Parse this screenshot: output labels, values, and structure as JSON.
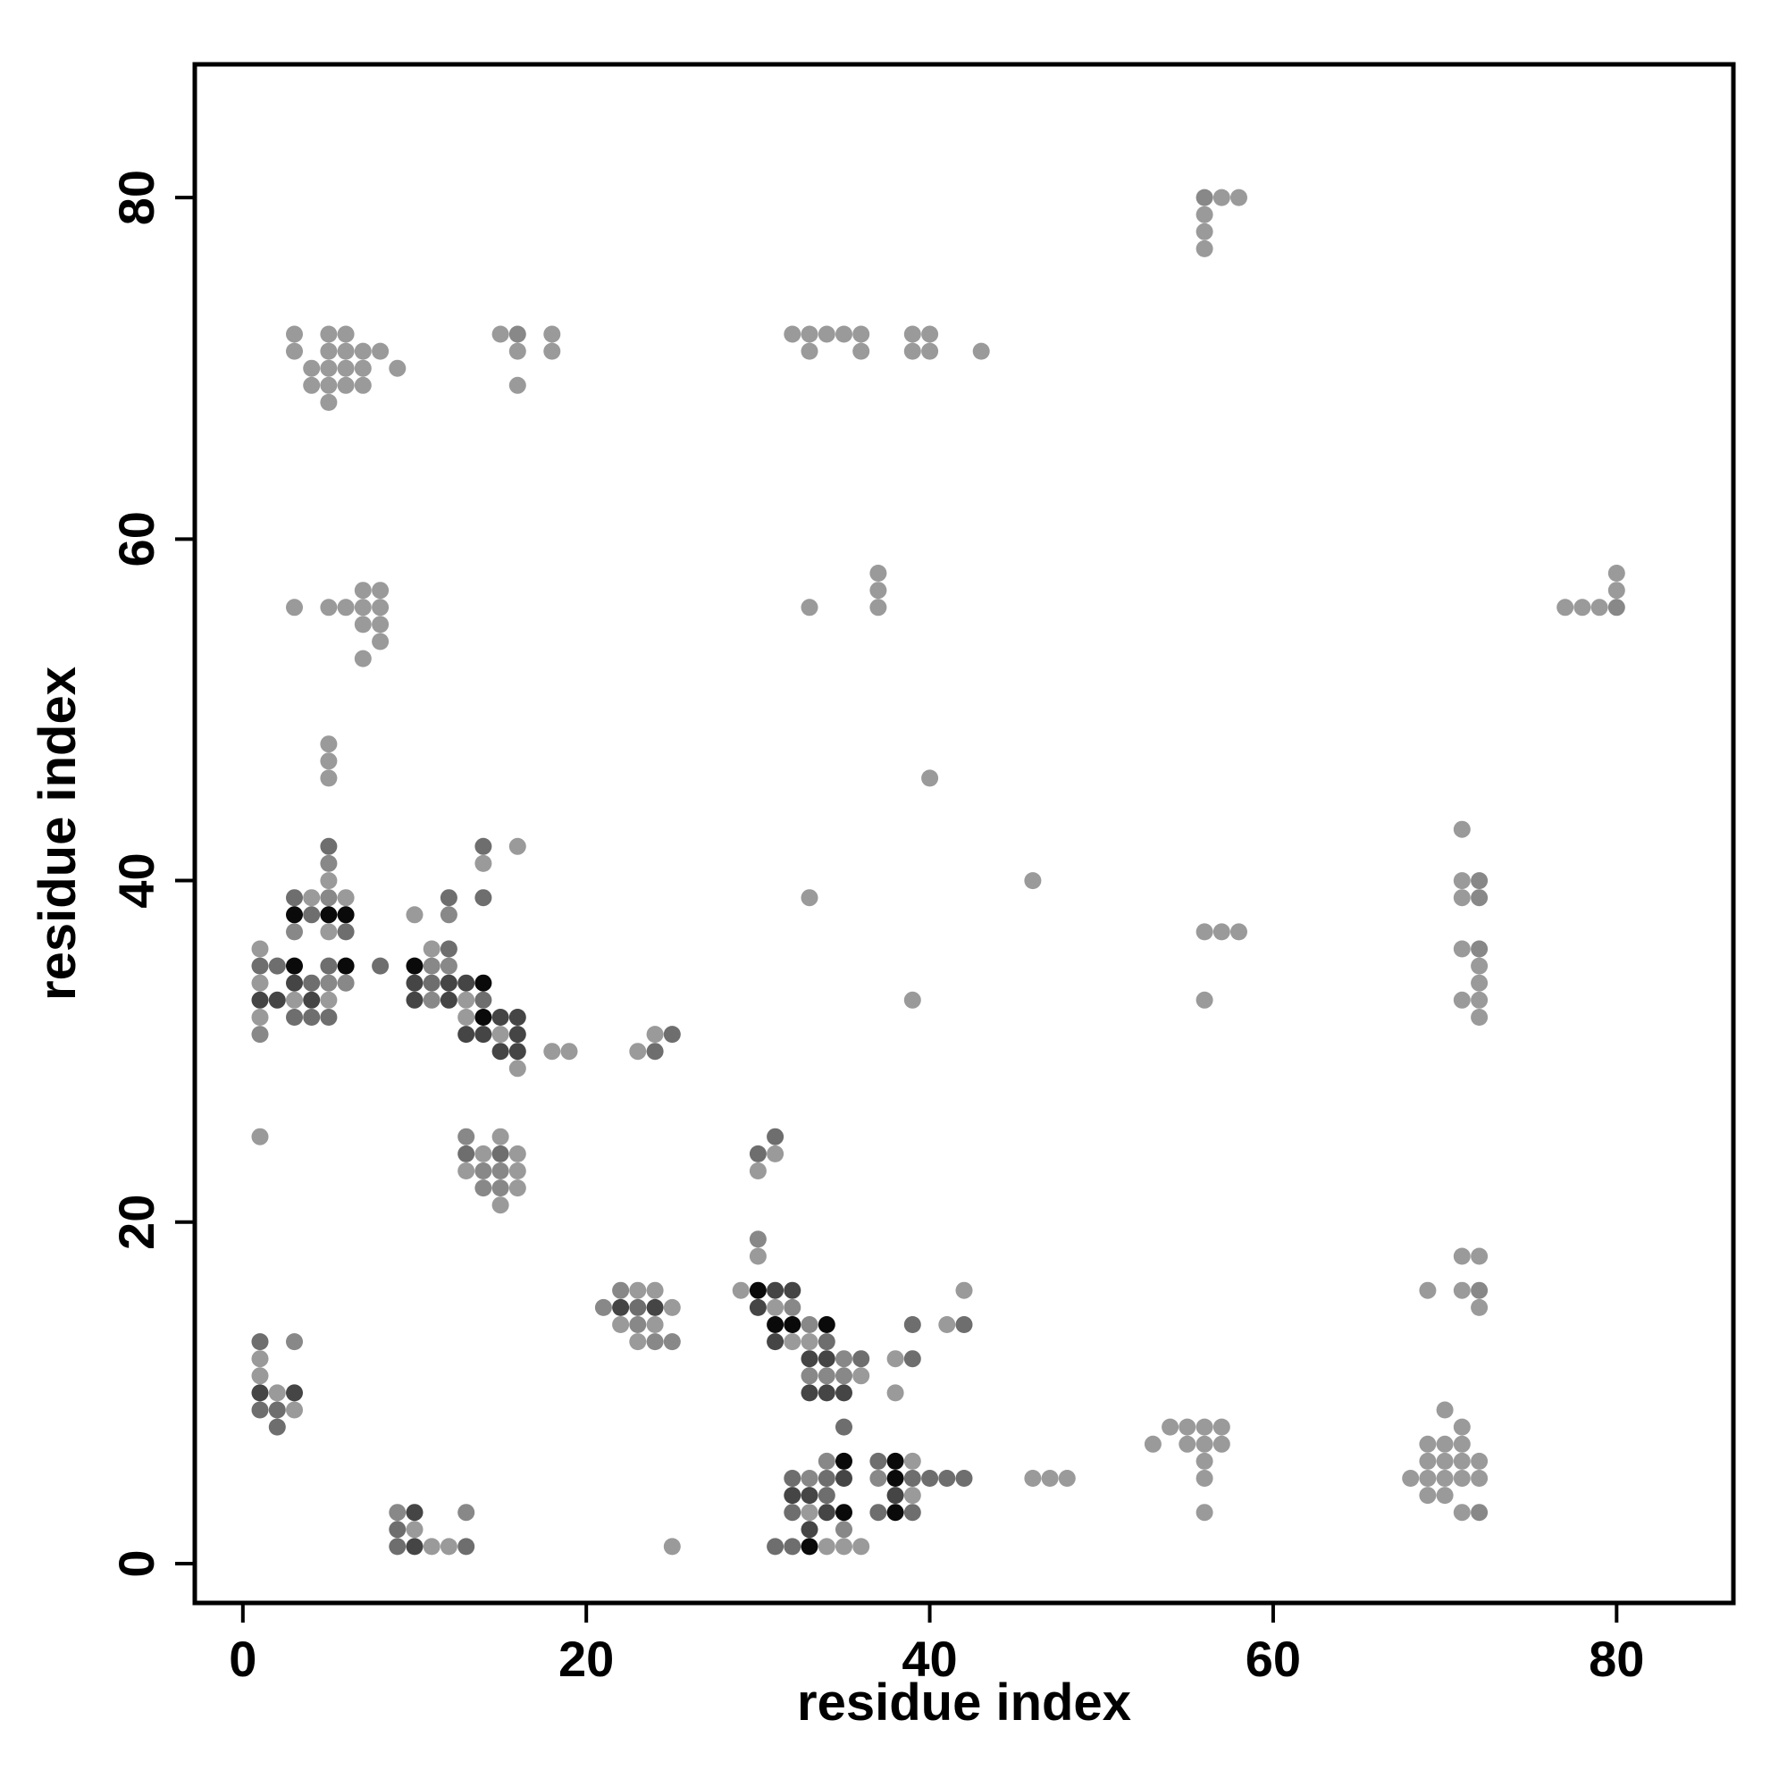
{
  "chart_data": {
    "type": "scatter",
    "title": "",
    "xlabel": "residue index",
    "ylabel": "residue index",
    "xlim": [
      -2.8,
      86.8
    ],
    "ylim": [
      -2.3,
      87.8
    ],
    "xticks": [
      0,
      20,
      40,
      60,
      80
    ],
    "yticks": [
      0,
      20,
      40,
      60,
      80
    ],
    "grid": false,
    "legend": "none",
    "intensity_colors": [
      "#9a9a9a",
      "#888888",
      "#6e6e6e",
      "#454545",
      "#0a0a0a"
    ],
    "point_intensity_note": "each point: [x, y, level] with level 1 (light) to 5 (black)",
    "points": [
      [
        1,
        25,
        1
      ],
      [
        1,
        13,
        3
      ],
      [
        1,
        12,
        1
      ],
      [
        1,
        11,
        1
      ],
      [
        1,
        10,
        4
      ],
      [
        1,
        9,
        3
      ],
      [
        2,
        10,
        1
      ],
      [
        2,
        9,
        3
      ],
      [
        2,
        8,
        3
      ],
      [
        3,
        13,
        2
      ],
      [
        3,
        10,
        4
      ],
      [
        3,
        9,
        1
      ],
      [
        9,
        3,
        2
      ],
      [
        9,
        2,
        3
      ],
      [
        9,
        1,
        3
      ],
      [
        10,
        3,
        4
      ],
      [
        10,
        2,
        1
      ],
      [
        10,
        1,
        4
      ],
      [
        11,
        1,
        1
      ],
      [
        12,
        1,
        1
      ],
      [
        13,
        3,
        2
      ],
      [
        13,
        1,
        3
      ],
      [
        1,
        36,
        1
      ],
      [
        1,
        35,
        3
      ],
      [
        1,
        34,
        1
      ],
      [
        1,
        33,
        4
      ],
      [
        1,
        32,
        1
      ],
      [
        1,
        31,
        2
      ],
      [
        2,
        35,
        3
      ],
      [
        2,
        33,
        4
      ],
      [
        3,
        39,
        3
      ],
      [
        3,
        38,
        5
      ],
      [
        3,
        37,
        2
      ],
      [
        3,
        35,
        5
      ],
      [
        3,
        34,
        4
      ],
      [
        3,
        33,
        1
      ],
      [
        3,
        32,
        3
      ],
      [
        4,
        39,
        1
      ],
      [
        4,
        38,
        3
      ],
      [
        4,
        34,
        3
      ],
      [
        4,
        33,
        4
      ],
      [
        4,
        32,
        3
      ],
      [
        5,
        42,
        3
      ],
      [
        5,
        41,
        2
      ],
      [
        5,
        40,
        1
      ],
      [
        5,
        39,
        2
      ],
      [
        5,
        38,
        5
      ],
      [
        5,
        37,
        1
      ],
      [
        5,
        35,
        3
      ],
      [
        5,
        34,
        2
      ],
      [
        5,
        33,
        1
      ],
      [
        5,
        32,
        3
      ],
      [
        6,
        39,
        1
      ],
      [
        6,
        38,
        5
      ],
      [
        6,
        37,
        3
      ],
      [
        6,
        35,
        5
      ],
      [
        6,
        34,
        2
      ],
      [
        8,
        35,
        3
      ],
      [
        10,
        38,
        1
      ],
      [
        10,
        35,
        5
      ],
      [
        10,
        34,
        4
      ],
      [
        10,
        33,
        4
      ],
      [
        11,
        36,
        1
      ],
      [
        11,
        35,
        2
      ],
      [
        11,
        34,
        3
      ],
      [
        11,
        33,
        2
      ],
      [
        12,
        39,
        3
      ],
      [
        12,
        38,
        2
      ],
      [
        12,
        36,
        3
      ],
      [
        12,
        35,
        2
      ],
      [
        12,
        34,
        4
      ],
      [
        12,
        33,
        4
      ],
      [
        13,
        34,
        4
      ],
      [
        13,
        33,
        1
      ],
      [
        13,
        32,
        1
      ],
      [
        13,
        31,
        4
      ],
      [
        14,
        42,
        3
      ],
      [
        14,
        41,
        1
      ],
      [
        14,
        39,
        3
      ],
      [
        14,
        34,
        5
      ],
      [
        14,
        33,
        3
      ],
      [
        14,
        32,
        5
      ],
      [
        14,
        31,
        4
      ],
      [
        15,
        32,
        4
      ],
      [
        15,
        31,
        1
      ],
      [
        15,
        30,
        4
      ],
      [
        16,
        42,
        1
      ],
      [
        16,
        32,
        4
      ],
      [
        16,
        31,
        4
      ],
      [
        16,
        30,
        4
      ],
      [
        16,
        29,
        1
      ],
      [
        18,
        30,
        1
      ],
      [
        19,
        30,
        1
      ],
      [
        23,
        30,
        1
      ],
      [
        24,
        31,
        1
      ],
      [
        24,
        30,
        3
      ],
      [
        25,
        31,
        3
      ],
      [
        13,
        25,
        2
      ],
      [
        13,
        24,
        3
      ],
      [
        13,
        23,
        1
      ],
      [
        14,
        24,
        1
      ],
      [
        14,
        23,
        2
      ],
      [
        14,
        22,
        2
      ],
      [
        15,
        25,
        1
      ],
      [
        15,
        24,
        3
      ],
      [
        15,
        23,
        2
      ],
      [
        15,
        22,
        2
      ],
      [
        15,
        21,
        1
      ],
      [
        16,
        24,
        1
      ],
      [
        16,
        23,
        1
      ],
      [
        16,
        22,
        1
      ],
      [
        30,
        24,
        3
      ],
      [
        30,
        23,
        1
      ],
      [
        31,
        25,
        3
      ],
      [
        31,
        24,
        1
      ],
      [
        30,
        19,
        2
      ],
      [
        30,
        18,
        1
      ],
      [
        21,
        15,
        2
      ],
      [
        22,
        16,
        2
      ],
      [
        22,
        15,
        4
      ],
      [
        22,
        14,
        1
      ],
      [
        23,
        16,
        1
      ],
      [
        23,
        15,
        3
      ],
      [
        23,
        14,
        2
      ],
      [
        23,
        13,
        1
      ],
      [
        24,
        16,
        1
      ],
      [
        24,
        15,
        4
      ],
      [
        24,
        14,
        1
      ],
      [
        24,
        13,
        2
      ],
      [
        25,
        15,
        1
      ],
      [
        25,
        13,
        2
      ],
      [
        29,
        16,
        1
      ],
      [
        30,
        16,
        5
      ],
      [
        30,
        15,
        4
      ],
      [
        31,
        16,
        4
      ],
      [
        31,
        15,
        1
      ],
      [
        31,
        14,
        5
      ],
      [
        31,
        13,
        4
      ],
      [
        32,
        16,
        4
      ],
      [
        32,
        15,
        2
      ],
      [
        32,
        14,
        5
      ],
      [
        32,
        13,
        1
      ],
      [
        33,
        14,
        2
      ],
      [
        33,
        13,
        1
      ],
      [
        33,
        12,
        4
      ],
      [
        33,
        11,
        2
      ],
      [
        33,
        10,
        4
      ],
      [
        34,
        14,
        5
      ],
      [
        34,
        13,
        3
      ],
      [
        34,
        12,
        4
      ],
      [
        34,
        11,
        2
      ],
      [
        34,
        10,
        4
      ],
      [
        35,
        12,
        2
      ],
      [
        35,
        11,
        2
      ],
      [
        35,
        10,
        4
      ],
      [
        35,
        8,
        3
      ],
      [
        36,
        12,
        3
      ],
      [
        36,
        11,
        1
      ],
      [
        38,
        12,
        1
      ],
      [
        38,
        10,
        1
      ],
      [
        39,
        14,
        3
      ],
      [
        39,
        12,
        3
      ],
      [
        41,
        14,
        1
      ],
      [
        42,
        16,
        1
      ],
      [
        42,
        14,
        3
      ],
      [
        31,
        1,
        3
      ],
      [
        32,
        5,
        3
      ],
      [
        32,
        4,
        4
      ],
      [
        32,
        3,
        3
      ],
      [
        32,
        1,
        3
      ],
      [
        33,
        5,
        2
      ],
      [
        33,
        4,
        4
      ],
      [
        33,
        3,
        1
      ],
      [
        33,
        2,
        4
      ],
      [
        33,
        1,
        5
      ],
      [
        34,
        6,
        2
      ],
      [
        34,
        5,
        3
      ],
      [
        34,
        4,
        3
      ],
      [
        34,
        3,
        4
      ],
      [
        34,
        1,
        1
      ],
      [
        35,
        6,
        5
      ],
      [
        35,
        5,
        4
      ],
      [
        35,
        3,
        5
      ],
      [
        35,
        2,
        2
      ],
      [
        35,
        1,
        1
      ],
      [
        36,
        1,
        1
      ],
      [
        25,
        1,
        1
      ],
      [
        37,
        6,
        3
      ],
      [
        37,
        5,
        2
      ],
      [
        37,
        3,
        3
      ],
      [
        38,
        6,
        5
      ],
      [
        38,
        5,
        5
      ],
      [
        38,
        4,
        4
      ],
      [
        38,
        3,
        5
      ],
      [
        39,
        6,
        1
      ],
      [
        39,
        5,
        3
      ],
      [
        39,
        4,
        1
      ],
      [
        39,
        3,
        3
      ],
      [
        40,
        5,
        3
      ],
      [
        41,
        5,
        3
      ],
      [
        42,
        5,
        3
      ],
      [
        46,
        5,
        1
      ],
      [
        47,
        5,
        1
      ],
      [
        48,
        5,
        1
      ],
      [
        53,
        7,
        1
      ],
      [
        54,
        8,
        1
      ],
      [
        55,
        8,
        1
      ],
      [
        55,
        7,
        1
      ],
      [
        56,
        8,
        1
      ],
      [
        56,
        7,
        1
      ],
      [
        56,
        6,
        1
      ],
      [
        56,
        5,
        1
      ],
      [
        56,
        3,
        1
      ],
      [
        57,
        8,
        1
      ],
      [
        57,
        7,
        1
      ],
      [
        68,
        5,
        1
      ],
      [
        69,
        7,
        1
      ],
      [
        69,
        6,
        1
      ],
      [
        69,
        5,
        1
      ],
      [
        69,
        4,
        1
      ],
      [
        70,
        9,
        1
      ],
      [
        70,
        7,
        1
      ],
      [
        70,
        6,
        1
      ],
      [
        70,
        5,
        1
      ],
      [
        70,
        4,
        1
      ],
      [
        71,
        8,
        1
      ],
      [
        71,
        7,
        1
      ],
      [
        71,
        6,
        1
      ],
      [
        71,
        5,
        1
      ],
      [
        71,
        3,
        1
      ],
      [
        72,
        6,
        1
      ],
      [
        72,
        5,
        1
      ],
      [
        72,
        3,
        2
      ],
      [
        69,
        16,
        1
      ],
      [
        71,
        18,
        1
      ],
      [
        71,
        16,
        1
      ],
      [
        72,
        18,
        1
      ],
      [
        72,
        16,
        2
      ],
      [
        72,
        15,
        1
      ],
      [
        71,
        43,
        1
      ],
      [
        71,
        40,
        1
      ],
      [
        71,
        39,
        1
      ],
      [
        71,
        36,
        1
      ],
      [
        71,
        33,
        1
      ],
      [
        72,
        40,
        2
      ],
      [
        72,
        39,
        2
      ],
      [
        72,
        36,
        2
      ],
      [
        72,
        35,
        1
      ],
      [
        72,
        34,
        1
      ],
      [
        72,
        33,
        1
      ],
      [
        72,
        32,
        1
      ],
      [
        56,
        37,
        1
      ],
      [
        57,
        37,
        1
      ],
      [
        58,
        37,
        1
      ],
      [
        56,
        33,
        1
      ],
      [
        46,
        40,
        1
      ],
      [
        39,
        33,
        1
      ],
      [
        33,
        39,
        1
      ],
      [
        40,
        46,
        1
      ],
      [
        5,
        48,
        1
      ],
      [
        5,
        47,
        1
      ],
      [
        5,
        46,
        1
      ],
      [
        3,
        56,
        1
      ],
      [
        5,
        56,
        1
      ],
      [
        6,
        56,
        1
      ],
      [
        7,
        57,
        1
      ],
      [
        7,
        56,
        1
      ],
      [
        7,
        55,
        1
      ],
      [
        7,
        53,
        1
      ],
      [
        8,
        57,
        1
      ],
      [
        8,
        56,
        1
      ],
      [
        8,
        55,
        1
      ],
      [
        8,
        54,
        1
      ],
      [
        33,
        56,
        1
      ],
      [
        37,
        58,
        1
      ],
      [
        37,
        57,
        1
      ],
      [
        37,
        56,
        1
      ],
      [
        77,
        56,
        1
      ],
      [
        78,
        56,
        1
      ],
      [
        79,
        56,
        1
      ],
      [
        80,
        58,
        1
      ],
      [
        80,
        57,
        1
      ],
      [
        80,
        56,
        2
      ],
      [
        3,
        72,
        1
      ],
      [
        3,
        71,
        1
      ],
      [
        4,
        70,
        1
      ],
      [
        4,
        69,
        1
      ],
      [
        5,
        72,
        1
      ],
      [
        5,
        71,
        1
      ],
      [
        5,
        70,
        1
      ],
      [
        5,
        69,
        1
      ],
      [
        5,
        68,
        1
      ],
      [
        6,
        72,
        1
      ],
      [
        6,
        71,
        1
      ],
      [
        6,
        70,
        1
      ],
      [
        6,
        69,
        1
      ],
      [
        7,
        71,
        1
      ],
      [
        7,
        70,
        1
      ],
      [
        7,
        69,
        1
      ],
      [
        8,
        71,
        1
      ],
      [
        9,
        70,
        1
      ],
      [
        15,
        72,
        1
      ],
      [
        16,
        72,
        2
      ],
      [
        16,
        71,
        1
      ],
      [
        16,
        69,
        1
      ],
      [
        18,
        72,
        1
      ],
      [
        18,
        71,
        1
      ],
      [
        32,
        72,
        1
      ],
      [
        33,
        72,
        1
      ],
      [
        33,
        71,
        1
      ],
      [
        34,
        72,
        1
      ],
      [
        35,
        72,
        1
      ],
      [
        36,
        72,
        1
      ],
      [
        36,
        71,
        1
      ],
      [
        39,
        72,
        1
      ],
      [
        39,
        71,
        1
      ],
      [
        40,
        72,
        1
      ],
      [
        40,
        71,
        1
      ],
      [
        43,
        71,
        1
      ],
      [
        56,
        80,
        2
      ],
      [
        56,
        79,
        1
      ],
      [
        56,
        78,
        1
      ],
      [
        56,
        77,
        1
      ],
      [
        57,
        80,
        1
      ],
      [
        58,
        80,
        1
      ]
    ]
  }
}
